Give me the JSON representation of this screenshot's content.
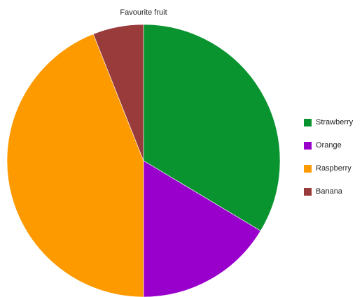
{
  "chart_data": {
    "type": "pie",
    "title": "Favourite fruit",
    "categories": [
      "Strawberry",
      "Orange",
      "Raspberry",
      "Banana"
    ],
    "values": [
      33.6,
      16.4,
      44.0,
      6.0
    ],
    "colors": [
      "#0a9430",
      "#9a00cc",
      "#fc9a00",
      "#993b3b"
    ],
    "start_angle_deg": 0,
    "direction": "clockwise",
    "legend_position": "right"
  }
}
